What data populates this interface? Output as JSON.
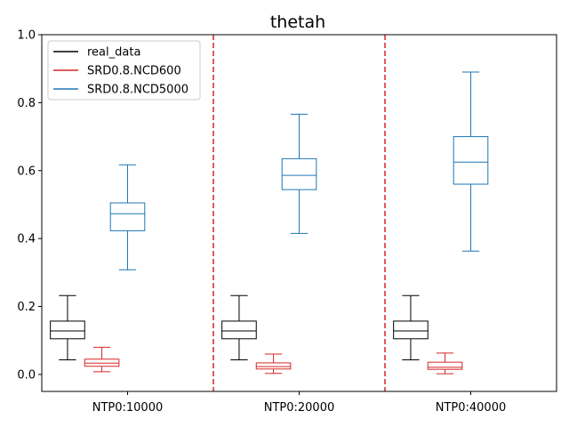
{
  "chart_data": {
    "type": "boxplot",
    "title": "thetah",
    "xlabel": "",
    "ylabel": "",
    "ylim": [
      -0.05,
      1.0
    ],
    "yticks": [
      "0.0",
      "0.2",
      "0.4",
      "0.6",
      "0.8",
      "1.0"
    ],
    "ytick_values": [
      0.0,
      0.2,
      0.4,
      0.6,
      0.8,
      1.0
    ],
    "categories": [
      "NTP0:10000",
      "NTP0:20000",
      "NTP0:40000"
    ],
    "separators": [
      1.5,
      2.5
    ],
    "separator_color": "#d62728",
    "legend_position": "upper-left",
    "series": [
      {
        "name": "real_data",
        "color": "#000000",
        "offset": -0.35,
        "boxes": [
          {
            "whisker_low": 0.043,
            "q1": 0.105,
            "median": 0.128,
            "q3": 0.157,
            "whisker_high": 0.232
          },
          {
            "whisker_low": 0.043,
            "q1": 0.105,
            "median": 0.128,
            "q3": 0.157,
            "whisker_high": 0.232
          },
          {
            "whisker_low": 0.043,
            "q1": 0.105,
            "median": 0.128,
            "q3": 0.157,
            "whisker_high": 0.232
          }
        ]
      },
      {
        "name": "SRD0.8.NCD600",
        "color": "#d62728",
        "offset": -0.15,
        "boxes": [
          {
            "whisker_low": 0.008,
            "q1": 0.024,
            "median": 0.033,
            "q3": 0.045,
            "whisker_high": 0.08
          },
          {
            "whisker_low": 0.003,
            "q1": 0.016,
            "median": 0.023,
            "q3": 0.034,
            "whisker_high": 0.06
          },
          {
            "whisker_low": 0.002,
            "q1": 0.015,
            "median": 0.021,
            "q3": 0.036,
            "whisker_high": 0.063
          }
        ]
      },
      {
        "name": "SRD0.8.NCD5000",
        "color": "#1f77b4",
        "offset": 0.0,
        "boxes": [
          {
            "whisker_low": 0.308,
            "q1": 0.423,
            "median": 0.473,
            "q3": 0.505,
            "whisker_high": 0.617
          },
          {
            "whisker_low": 0.415,
            "q1": 0.544,
            "median": 0.586,
            "q3": 0.635,
            "whisker_high": 0.766
          },
          {
            "whisker_low": 0.363,
            "q1": 0.56,
            "median": 0.625,
            "q3": 0.7,
            "whisker_high": 0.89
          }
        ]
      }
    ]
  }
}
